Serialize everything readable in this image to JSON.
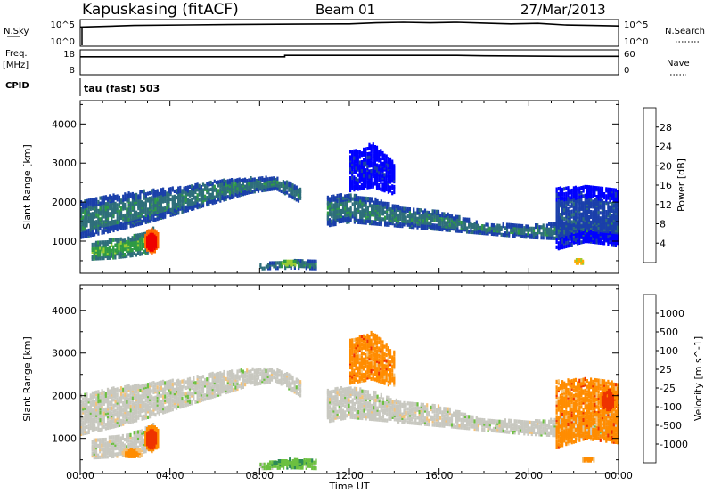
{
  "header": {
    "station": "Kapuskasing (fitACF)",
    "beam": "Beam 01",
    "date": "27/Mar/2013"
  },
  "strip_panels": {
    "nsky_label": "N.Sky",
    "nsky_ticks": [
      "10^5",
      "10^0"
    ],
    "nsearch_label": "N.Search",
    "nsearch_ticks": [
      "10^5",
      "10^0"
    ],
    "freq_label": "Freq.",
    "freq_unit": "[MHz]",
    "freq_ticks": [
      "18",
      "8"
    ],
    "nave_label": "Nave",
    "nave_ticks": [
      "60",
      "0"
    ],
    "cpid_label": "CPID",
    "cpid_text": "tau (fast) 503",
    "nsky_trace": [
      [
        0,
        0.72
      ],
      [
        0.1,
        0.78
      ],
      [
        0.2,
        0.8
      ],
      [
        0.3,
        0.82
      ],
      [
        0.4,
        0.83
      ],
      [
        0.5,
        0.84
      ],
      [
        0.55,
        0.88
      ],
      [
        0.6,
        0.9
      ],
      [
        0.65,
        0.88
      ],
      [
        0.7,
        0.9
      ],
      [
        0.75,
        0.87
      ],
      [
        0.8,
        0.84
      ],
      [
        0.85,
        0.86
      ],
      [
        0.9,
        0.8
      ],
      [
        0.95,
        0.78
      ],
      [
        1.0,
        0.76
      ]
    ],
    "freq_trace": [
      [
        0,
        0.72
      ],
      [
        0.38,
        0.72
      ],
      [
        0.38,
        0.78
      ],
      [
        0.7,
        0.78
      ],
      [
        0.75,
        0.76
      ],
      [
        0.9,
        0.74
      ],
      [
        1.0,
        0.74
      ]
    ]
  },
  "x_axis": {
    "label": "Time UT",
    "ticks": [
      "00:00",
      "04:00",
      "08:00",
      "12:00",
      "16:00",
      "20:00",
      "00:00"
    ]
  },
  "chart_data": [
    {
      "type": "heatmap",
      "name": "power",
      "ylabel": "Slant Range [km]",
      "x_hours": [
        0,
        24
      ],
      "ylim": [
        180,
        4600
      ],
      "y_ticks": [
        1000,
        2000,
        3000,
        4000
      ],
      "colorbar_label": "Power [dB]",
      "colorbar_ticks": [
        "28",
        "24",
        "20",
        "16",
        "12",
        "8",
        "4"
      ],
      "colorbar_colors": [
        "#0000ff",
        "#1a3faa",
        "#2e6e7a",
        "#2e9a44",
        "#9acd32",
        "#ffaa00",
        "#ff6a00",
        "#ee0000"
      ],
      "bands": [
        {
          "pts": [
            [
              0.0,
              1100,
              2000
            ],
            [
              1.5,
              1280,
              2180
            ],
            [
              3.0,
              1500,
              2300
            ],
            [
              4.5,
              1750,
              2380
            ],
            [
              6.0,
              2000,
              2540
            ],
            [
              7.5,
              2250,
              2620
            ],
            [
              8.7,
              2350,
              2640
            ],
            [
              9.8,
              2000,
              2350
            ]
          ],
          "core": 2
        },
        {
          "pts": [
            [
              0.5,
              550,
              950
            ],
            [
              1.5,
              580,
              1050
            ],
            [
              2.5,
              650,
              1150
            ],
            [
              3.3,
              750,
              1350
            ]
          ],
          "core": 3
        },
        {
          "pts": [
            [
              11.0,
              1400,
              2150
            ],
            [
              12.0,
              1500,
              2200
            ],
            [
              13.0,
              1450,
              2100
            ],
            [
              14.0,
              1400,
              1900
            ],
            [
              16.0,
              1300,
              1750
            ],
            [
              18.0,
              1200,
              1450
            ],
            [
              20.0,
              1100,
              1400
            ],
            [
              22.0,
              1050,
              1500
            ],
            [
              24.0,
              1000,
              1600
            ]
          ],
          "core": 2
        },
        {
          "pts": [
            [
              21.2,
              800,
              2350
            ],
            [
              22.5,
              1000,
              2400
            ],
            [
              24.0,
              900,
              2300
            ]
          ],
          "core": 1
        },
        {
          "pts": [
            [
              12.0,
              2300,
              3300
            ],
            [
              13.0,
              2400,
              3500
            ],
            [
              14.0,
              2200,
              3000
            ]
          ],
          "core": 0
        },
        {
          "pts": [
            [
              8.0,
              300,
              420
            ],
            [
              9.5,
              320,
              500
            ],
            [
              10.5,
              300,
              480
            ]
          ],
          "core": 2
        }
      ],
      "spots": [
        {
          "h": 3.15,
          "r": 1000,
          "dh": 0.35,
          "dr": 300,
          "c": 7
        },
        {
          "h": 9.3,
          "r": 430,
          "dh": 0.45,
          "dr": 70,
          "c": 4
        },
        {
          "h": 22.2,
          "r": 470,
          "dh": 0.25,
          "dr": 70,
          "c": 5
        }
      ]
    },
    {
      "type": "heatmap",
      "name": "velocity",
      "ylabel": "Slant Range [km]",
      "x_hours": [
        0,
        24
      ],
      "ylim": [
        180,
        4600
      ],
      "y_ticks": [
        1000,
        2000,
        3000,
        4000
      ],
      "colorbar_label": "Velocity [m s^-1]",
      "colorbar_ticks": [
        "1000",
        "500",
        "100",
        "25",
        "-25",
        "-100",
        "-500",
        "-1000"
      ],
      "colorbar_colors": [
        "#0000ff",
        "#1a3faa",
        "#2e8b57",
        "#6cc040",
        "#c8c8c0",
        "#f3c27a",
        "#ff8c00",
        "#ee3300",
        "#ee0000"
      ],
      "bands": [
        {
          "pts": [
            [
              0.0,
              1100,
              2000
            ],
            [
              1.5,
              1280,
              2180
            ],
            [
              3.0,
              1500,
              2300
            ],
            [
              4.5,
              1750,
              2380
            ],
            [
              6.0,
              2000,
              2540
            ],
            [
              7.5,
              2250,
              2620
            ],
            [
              8.7,
              2350,
              2640
            ],
            [
              9.8,
              2000,
              2350
            ]
          ],
          "core": 4
        },
        {
          "pts": [
            [
              0.5,
              550,
              950
            ],
            [
              1.5,
              580,
              1050
            ],
            [
              2.5,
              650,
              1150
            ],
            [
              3.3,
              750,
              1350
            ]
          ],
          "core": 4
        },
        {
          "pts": [
            [
              11.0,
              1400,
              2150
            ],
            [
              12.0,
              1500,
              2200
            ],
            [
              13.0,
              1450,
              2100
            ],
            [
              14.0,
              1400,
              1900
            ],
            [
              16.0,
              1300,
              1750
            ],
            [
              18.0,
              1200,
              1450
            ],
            [
              20.0,
              1100,
              1400
            ],
            [
              22.0,
              1050,
              1500
            ],
            [
              24.0,
              1000,
              1600
            ]
          ],
          "core": 4
        },
        {
          "pts": [
            [
              21.2,
              800,
              2350
            ],
            [
              22.5,
              1000,
              2400
            ],
            [
              24.0,
              900,
              2300
            ]
          ],
          "core": 6
        },
        {
          "pts": [
            [
              12.0,
              2300,
              3300
            ],
            [
              13.0,
              2400,
              3500
            ],
            [
              14.0,
              2200,
              3000
            ]
          ],
          "core": 6
        },
        {
          "pts": [
            [
              8.0,
              300,
              420
            ],
            [
              9.5,
              320,
              500
            ],
            [
              10.5,
              300,
              480
            ]
          ],
          "core": 3
        }
      ],
      "spots": [
        {
          "h": 3.15,
          "r": 1000,
          "dh": 0.35,
          "dr": 300,
          "c": 7
        },
        {
          "h": 2.3,
          "r": 660,
          "dh": 0.45,
          "dr": 120,
          "c": 6
        },
        {
          "h": 9.3,
          "r": 430,
          "dh": 0.7,
          "dr": 80,
          "c": 3
        },
        {
          "h": 22.6,
          "r": 500,
          "dh": 0.3,
          "dr": 60,
          "c": 6
        },
        {
          "h": 23.5,
          "r": 1900,
          "dh": 0.4,
          "dr": 300,
          "c": 7
        }
      ]
    }
  ]
}
